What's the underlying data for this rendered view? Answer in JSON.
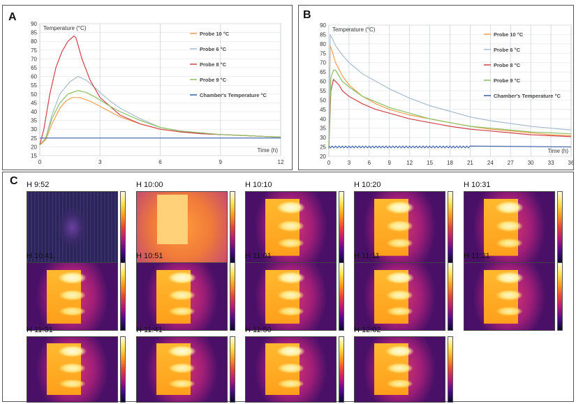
{
  "panel_labels": {
    "a": "A",
    "b": "B",
    "c": "C"
  },
  "chart_data": [
    {
      "type": "line",
      "panel": "A",
      "ylabel": "Temperature (°C)",
      "xlabel": "Time (h)",
      "xlim": [
        0,
        12
      ],
      "ylim": [
        15,
        90
      ],
      "xticks": [
        0,
        3,
        6,
        9,
        12
      ],
      "yticks": [
        15,
        20,
        25,
        30,
        35,
        40,
        45,
        50,
        55,
        60,
        65,
        70,
        75,
        80,
        85,
        90
      ],
      "legend_position": "top-right",
      "series": [
        {
          "name": "Probe 10 °C",
          "color": "#f0a050",
          "x": [
            0,
            0.3,
            0.6,
            1.0,
            1.3,
            1.6,
            2.0,
            2.5,
            3,
            4,
            5,
            6,
            7,
            8,
            9,
            10,
            11,
            12
          ],
          "y": [
            21,
            24,
            33,
            42,
            46,
            48,
            48,
            46,
            43,
            37,
            33,
            30,
            28.5,
            27.5,
            27,
            26.5,
            26,
            25.5
          ]
        },
        {
          "name": "Probe 6 °C",
          "color": "#a8bccf",
          "x": [
            0,
            0.3,
            0.6,
            1.0,
            1.5,
            1.9,
            2.3,
            2.8,
            3.5,
            4,
            5,
            6,
            7,
            8,
            9,
            10,
            11,
            12
          ],
          "y": [
            21,
            25,
            38,
            50,
            57,
            60,
            58,
            53,
            46,
            42,
            36,
            31,
            29,
            27.5,
            27,
            26.5,
            26,
            25.5
          ]
        },
        {
          "name": "Probe 8 °C",
          "color": "#d0424a",
          "x": [
            0,
            0.2,
            0.5,
            0.8,
            1.1,
            1.4,
            1.7,
            1.8,
            2.1,
            2.5,
            3,
            4,
            5,
            6,
            7,
            8,
            9,
            10,
            11,
            12
          ],
          "y": [
            21,
            30,
            50,
            65,
            74,
            80,
            83,
            82,
            70,
            58,
            48,
            38,
            33,
            30,
            28.5,
            27.5,
            27,
            26.5,
            26,
            25.5
          ]
        },
        {
          "name": "Probe 9 °C",
          "color": "#8cc063",
          "x": [
            0,
            0.3,
            0.6,
            1.0,
            1.4,
            1.9,
            2.3,
            2.8,
            3.5,
            4,
            5,
            6,
            7,
            8,
            9,
            10,
            11,
            12
          ],
          "y": [
            21,
            25,
            36,
            45,
            50,
            52,
            51,
            48,
            43,
            40,
            35,
            31,
            29,
            28,
            27,
            26.5,
            26,
            25.5
          ]
        },
        {
          "name": "Chamber's Temperature °C",
          "color": "#3a5ea8",
          "x": [
            0,
            12
          ],
          "y": [
            25,
            25
          ]
        }
      ]
    },
    {
      "type": "line",
      "panel": "B",
      "ylabel": "Temperature (°C)",
      "xlabel": "Time (h)",
      "xlim": [
        0,
        36
      ],
      "ylim": [
        20,
        90
      ],
      "xticks": [
        0,
        3,
        6,
        9,
        12,
        15,
        18,
        21,
        24,
        27,
        30,
        33,
        36
      ],
      "yticks": [
        20,
        25,
        30,
        35,
        40,
        45,
        50,
        55,
        60,
        65,
        70,
        75,
        80,
        85,
        90
      ],
      "legend_position": "top-right",
      "series": [
        {
          "name": "Probe 10 °C",
          "color": "#f0a050",
          "x": [
            0,
            0.2,
            0.5,
            1,
            2,
            3,
            5,
            7,
            9,
            12,
            15,
            18,
            21,
            24,
            27,
            30,
            33,
            36
          ],
          "y": [
            24,
            79,
            76,
            70,
            63,
            58,
            52,
            48,
            45,
            42,
            40,
            38,
            36,
            34.5,
            33.5,
            32.5,
            31.5,
            31
          ]
        },
        {
          "name": "Probe 6 °C",
          "color": "#a8bccf",
          "x": [
            0,
            0.2,
            0.5,
            1,
            2,
            3,
            5,
            7,
            9,
            12,
            15,
            18,
            21,
            24,
            27,
            30,
            33,
            36
          ],
          "y": [
            24,
            85,
            83,
            79,
            74,
            70,
            64,
            60,
            56,
            51,
            47,
            44,
            41,
            39,
            37.5,
            36,
            35,
            34
          ]
        },
        {
          "name": "Probe 8 °C",
          "color": "#d0424a",
          "x": [
            0,
            0.3,
            0.7,
            1,
            1.5,
            2,
            3,
            5,
            7,
            9,
            12,
            15,
            18,
            21,
            24,
            27,
            30,
            33,
            36
          ],
          "y": [
            24,
            55,
            61,
            60,
            58,
            55,
            52,
            48,
            45,
            43,
            40,
            38,
            36,
            34.5,
            33.5,
            32.5,
            31.5,
            31,
            30.5
          ]
        },
        {
          "name": "Probe 9 °C",
          "color": "#8cc063",
          "x": [
            0,
            0.3,
            0.7,
            1,
            1.5,
            2,
            3,
            5,
            7,
            9,
            12,
            15,
            18,
            21,
            24,
            27,
            30,
            33,
            36
          ],
          "y": [
            24,
            62,
            66,
            66,
            63,
            60,
            57,
            52,
            49,
            46,
            43,
            40,
            38,
            36,
            35,
            34,
            33,
            32.5,
            32
          ]
        },
        {
          "name": "Chamber's Temperature °C",
          "color": "#3a5ea8",
          "x": [
            0,
            36
          ],
          "y": [
            25,
            25
          ]
        }
      ]
    }
  ],
  "thermal_frames": [
    {
      "label": "H 9:52",
      "style": "cold"
    },
    {
      "label": "H 10:00",
      "style": "warm"
    },
    {
      "label": "H 10:10",
      "style": "hot"
    },
    {
      "label": "H 10:20",
      "style": "hot"
    },
    {
      "label": "H 10:31",
      "style": "hot"
    },
    {
      "label": "H 10:41",
      "style": "hot"
    },
    {
      "label": "H 10:51",
      "style": "hot"
    },
    {
      "label": "H 11:01",
      "style": "hot"
    },
    {
      "label": "H 11:11",
      "style": "hot"
    },
    {
      "label": "H 11:21",
      "style": "hot"
    },
    {
      "label": "H 11:31",
      "style": "hot"
    },
    {
      "label": "H 11:41",
      "style": "hot"
    },
    {
      "label": "H 11:50",
      "style": "hot"
    },
    {
      "label": "H 12:02",
      "style": "hot"
    }
  ]
}
